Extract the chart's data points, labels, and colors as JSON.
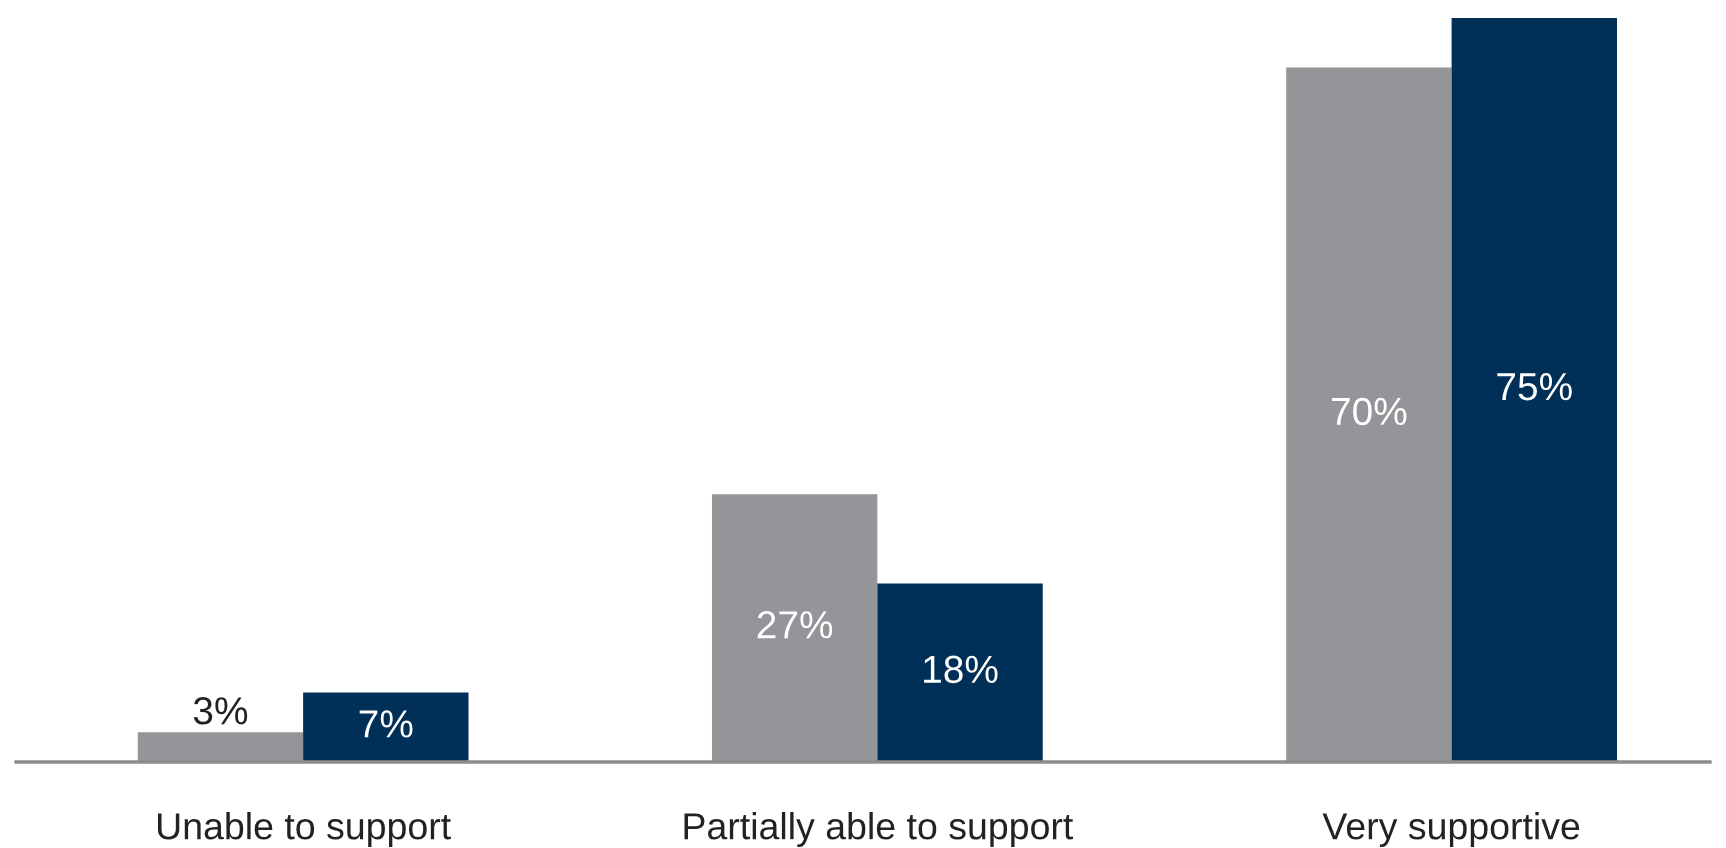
{
  "chart_data": {
    "type": "bar",
    "categories": [
      "Unable to support",
      "Partially able to support",
      "Very supportive"
    ],
    "series": [
      {
        "color": "#939598",
        "values": [
          3,
          27,
          70
        ],
        "value_labels": [
          "3%",
          "27%",
          "70%"
        ]
      },
      {
        "color": "#003057",
        "values": [
          7,
          18,
          75
        ],
        "value_labels": [
          "7%",
          "18%",
          "75%"
        ]
      }
    ]
  }
}
